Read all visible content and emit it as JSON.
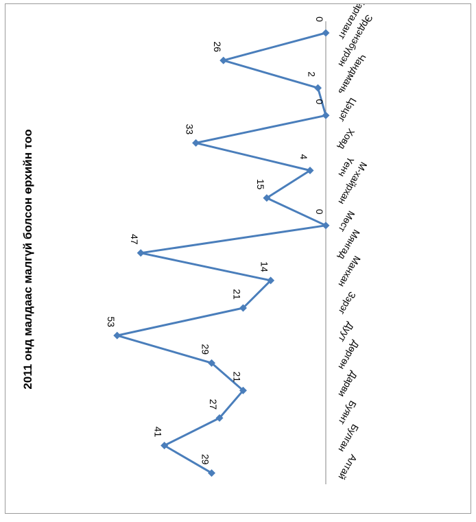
{
  "chart_data": {
    "type": "line",
    "title": "2011 онд малдаас малгүй болсон өрхийн тоо",
    "categories": [
      "Алтай",
      "Булган",
      "Буянт",
      "Дарви",
      "Дөргөн",
      "Дуут",
      "Зэрэг",
      "Манхан",
      "Мянгад",
      "Мөст",
      "М-хайрхан",
      "Үенч",
      "Ховд",
      "Цэцэг",
      "Чандмань",
      "Эрдэнэбүрэн",
      "Жаргалант"
    ],
    "series": [
      {
        "values": [
          29,
          41,
          27,
          21,
          29,
          53,
          21,
          14,
          47,
          0,
          15,
          4,
          33,
          0,
          2,
          26,
          0
        ]
      }
    ],
    "ylim": [
      0,
      60
    ],
    "grid": false,
    "legend": "none",
    "orientation": "rotated 90° clockwise",
    "colors": {
      "line": "#4a7ebb",
      "marker": "#4a7ebb",
      "axis": "#868686"
    }
  }
}
